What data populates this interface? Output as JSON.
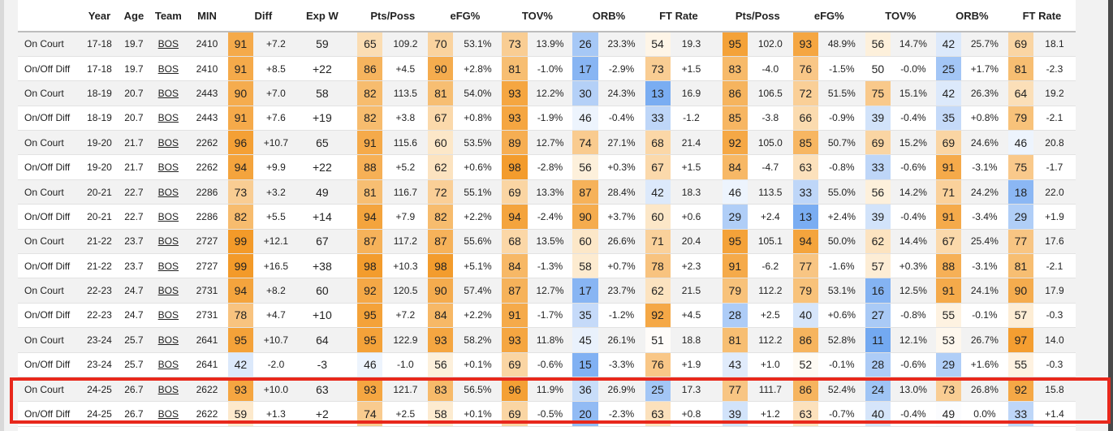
{
  "headers": [
    "",
    "Year",
    "Age",
    "Team",
    "MIN",
    "",
    "Diff",
    "Exp W",
    "",
    "Pts/Poss",
    "",
    "eFG%",
    "",
    "TOV%",
    "",
    "ORB%",
    "",
    "FT Rate",
    "",
    "",
    "Pts/Poss",
    "",
    "eFG%",
    "",
    "TOV%",
    "",
    "ORB%",
    "",
    "FT Rate",
    ""
  ],
  "colors": {
    "highlight_box": "#e8281c",
    "orange_high": "#f39a25",
    "blue_high": "#5b9bef"
  },
  "rows": [
    [
      "On Court",
      "17-18",
      "19.7",
      "BOS",
      "2410",
      "91",
      "+7.2",
      "59",
      "65",
      "109.2",
      "70",
      "53.1%",
      "73",
      "13.9%",
      "26",
      "23.3%",
      "54",
      "19.3",
      "95",
      "102.0",
      "93",
      "48.9%",
      "56",
      "14.7%",
      "42",
      "25.7%",
      "69",
      "18.1"
    ],
    [
      "On/Off Diff",
      "17-18",
      "19.7",
      "BOS",
      "2410",
      "91",
      "+8.5",
      "+22",
      "86",
      "+4.5",
      "90",
      "+2.8%",
      "81",
      "-1.0%",
      "17",
      "-2.9%",
      "73",
      "+1.5",
      "83",
      "-4.0",
      "76",
      "-1.5%",
      "50",
      "-0.0%",
      "25",
      "+1.7%",
      "81",
      "-2.3"
    ],
    [
      "On Court",
      "18-19",
      "20.7",
      "BOS",
      "2443",
      "90",
      "+7.0",
      "58",
      "82",
      "113.5",
      "81",
      "54.0%",
      "93",
      "12.2%",
      "30",
      "24.3%",
      "13",
      "16.9",
      "86",
      "106.5",
      "72",
      "51.5%",
      "75",
      "15.1%",
      "42",
      "26.3%",
      "64",
      "19.2"
    ],
    [
      "On/Off Diff",
      "18-19",
      "20.7",
      "BOS",
      "2443",
      "91",
      "+7.6",
      "+19",
      "82",
      "+3.8",
      "67",
      "+0.8%",
      "93",
      "-1.9%",
      "46",
      "-0.4%",
      "33",
      "-1.2",
      "85",
      "-3.8",
      "66",
      "-0.9%",
      "39",
      "-0.4%",
      "35",
      "+0.8%",
      "79",
      "-2.1"
    ],
    [
      "On Court",
      "19-20",
      "21.7",
      "BOS",
      "2262",
      "96",
      "+10.7",
      "65",
      "91",
      "115.6",
      "60",
      "53.5%",
      "89",
      "12.7%",
      "74",
      "27.1%",
      "68",
      "21.4",
      "92",
      "105.0",
      "85",
      "50.7%",
      "69",
      "15.2%",
      "69",
      "24.6%",
      "46",
      "20.8"
    ],
    [
      "On/Off Diff",
      "19-20",
      "21.7",
      "BOS",
      "2262",
      "94",
      "+9.9",
      "+22",
      "88",
      "+5.2",
      "62",
      "+0.6%",
      "98",
      "-2.8%",
      "56",
      "+0.3%",
      "67",
      "+1.5",
      "84",
      "-4.7",
      "63",
      "-0.8%",
      "33",
      "-0.6%",
      "91",
      "-3.1%",
      "75",
      "-1.7"
    ],
    [
      "On Court",
      "20-21",
      "22.7",
      "BOS",
      "2286",
      "73",
      "+3.2",
      "49",
      "81",
      "116.7",
      "72",
      "55.1%",
      "69",
      "13.3%",
      "87",
      "28.4%",
      "42",
      "18.3",
      "46",
      "113.5",
      "33",
      "55.0%",
      "56",
      "14.2%",
      "71",
      "24.2%",
      "18",
      "22.0"
    ],
    [
      "On/Off Diff",
      "20-21",
      "22.7",
      "BOS",
      "2286",
      "82",
      "+5.5",
      "+14",
      "94",
      "+7.9",
      "82",
      "+2.2%",
      "94",
      "-2.4%",
      "90",
      "+3.7%",
      "60",
      "+0.6",
      "29",
      "+2.4",
      "13",
      "+2.4%",
      "39",
      "-0.4%",
      "91",
      "-3.4%",
      "29",
      "+1.9"
    ],
    [
      "On Court",
      "21-22",
      "23.7",
      "BOS",
      "2727",
      "99",
      "+12.1",
      "67",
      "87",
      "117.2",
      "87",
      "55.6%",
      "68",
      "13.5%",
      "60",
      "26.6%",
      "71",
      "20.4",
      "95",
      "105.1",
      "94",
      "50.0%",
      "62",
      "14.4%",
      "67",
      "25.4%",
      "77",
      "17.6"
    ],
    [
      "On/Off Diff",
      "21-22",
      "23.7",
      "BOS",
      "2727",
      "99",
      "+16.5",
      "+38",
      "98",
      "+10.3",
      "98",
      "+5.1%",
      "84",
      "-1.3%",
      "58",
      "+0.7%",
      "78",
      "+2.3",
      "91",
      "-6.2",
      "77",
      "-1.6%",
      "57",
      "+0.3%",
      "88",
      "-3.1%",
      "81",
      "-2.1"
    ],
    [
      "On Court",
      "22-23",
      "24.7",
      "BOS",
      "2731",
      "94",
      "+8.2",
      "60",
      "92",
      "120.5",
      "90",
      "57.4%",
      "87",
      "12.7%",
      "17",
      "23.7%",
      "62",
      "21.5",
      "79",
      "112.2",
      "79",
      "53.1%",
      "16",
      "12.5%",
      "91",
      "24.1%",
      "90",
      "17.9"
    ],
    [
      "On/Off Diff",
      "22-23",
      "24.7",
      "BOS",
      "2731",
      "78",
      "+4.7",
      "+10",
      "95",
      "+7.2",
      "84",
      "+2.2%",
      "91",
      "-1.7%",
      "35",
      "-1.2%",
      "92",
      "+4.5",
      "28",
      "+2.5",
      "40",
      "+0.6%",
      "27",
      "-0.8%",
      "55",
      "-0.1%",
      "57",
      "-0.3"
    ],
    [
      "On Court",
      "23-24",
      "25.7",
      "BOS",
      "2641",
      "95",
      "+10.7",
      "64",
      "95",
      "122.9",
      "93",
      "58.2%",
      "93",
      "11.8%",
      "45",
      "26.1%",
      "51",
      "18.8",
      "81",
      "112.2",
      "86",
      "52.8%",
      "11",
      "12.1%",
      "53",
      "26.7%",
      "97",
      "14.0"
    ],
    [
      "On/Off Diff",
      "23-24",
      "25.7",
      "BOS",
      "2641",
      "42",
      "-2.0",
      "-3",
      "46",
      "-1.0",
      "56",
      "+0.1%",
      "69",
      "-0.6%",
      "15",
      "-3.3%",
      "76",
      "+1.9",
      "43",
      "+1.0",
      "52",
      "-0.1%",
      "28",
      "-0.6%",
      "29",
      "+1.6%",
      "55",
      "-0.3"
    ],
    [
      "On Court",
      "24-25",
      "26.7",
      "BOS",
      "2622",
      "93",
      "+10.0",
      "63",
      "93",
      "121.7",
      "83",
      "56.5%",
      "96",
      "11.9%",
      "36",
      "26.9%",
      "25",
      "17.3",
      "77",
      "111.7",
      "86",
      "52.4%",
      "24",
      "13.0%",
      "73",
      "26.8%",
      "92",
      "15.8"
    ],
    [
      "On/Off Diff",
      "24-25",
      "26.7",
      "BOS",
      "2622",
      "59",
      "+1.3",
      "+2",
      "74",
      "+2.5",
      "58",
      "+0.1%",
      "69",
      "-0.5%",
      "20",
      "-2.3%",
      "63",
      "+0.8",
      "39",
      "+1.2",
      "63",
      "-0.7%",
      "40",
      "-0.4%",
      "49",
      "0.0%",
      "33",
      "+1.4"
    ]
  ]
}
